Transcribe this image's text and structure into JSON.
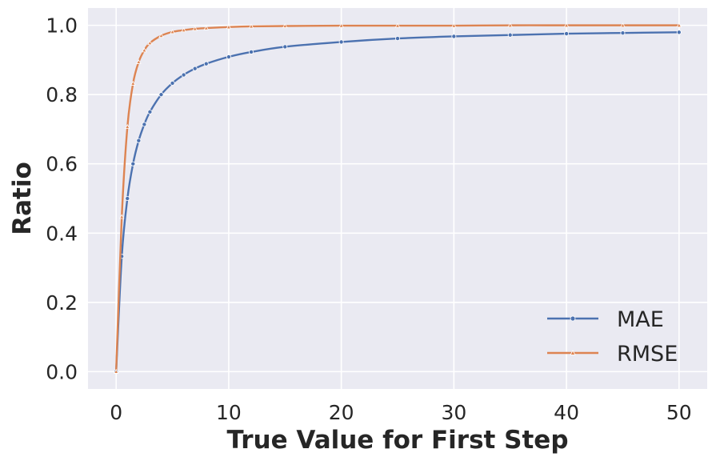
{
  "chart_data": {
    "type": "line",
    "xlabel": "True Value for First Step",
    "ylabel": "Ratio",
    "xlim": [
      -2.5,
      52.5
    ],
    "ylim": [
      -0.05,
      1.05
    ],
    "xticks": [
      0,
      10,
      20,
      30,
      40,
      50
    ],
    "xtick_labels": [
      "0",
      "10",
      "20",
      "30",
      "40",
      "50"
    ],
    "yticks": [
      0.0,
      0.2,
      0.4,
      0.6,
      0.8,
      1.0
    ],
    "ytick_labels": [
      "0.0",
      "0.2",
      "0.4",
      "0.6",
      "0.8",
      "1.0"
    ],
    "grid": true,
    "legend_position": "lower right",
    "x": [
      0,
      0.5,
      1,
      1.5,
      2,
      2.5,
      3,
      4,
      5,
      6,
      7,
      8,
      10,
      12,
      15,
      20,
      25,
      30,
      35,
      40,
      45,
      50
    ],
    "series": [
      {
        "name": "MAE",
        "color": "#4c72b0",
        "marker": "circle",
        "values": [
          0.0,
          0.333,
          0.5,
          0.6,
          0.667,
          0.714,
          0.75,
          0.8,
          0.833,
          0.857,
          0.875,
          0.889,
          0.909,
          0.923,
          0.938,
          0.952,
          0.962,
          0.968,
          0.972,
          0.976,
          0.978,
          0.98
        ]
      },
      {
        "name": "RMSE",
        "color": "#dd8452",
        "marker": "triangle",
        "values": [
          0.0,
          0.447,
          0.707,
          0.832,
          0.894,
          0.928,
          0.949,
          0.97,
          0.981,
          0.986,
          0.99,
          0.992,
          0.995,
          0.997,
          0.998,
          0.999,
          0.999,
          0.999,
          1.0,
          1.0,
          1.0,
          1.0
        ]
      }
    ]
  }
}
